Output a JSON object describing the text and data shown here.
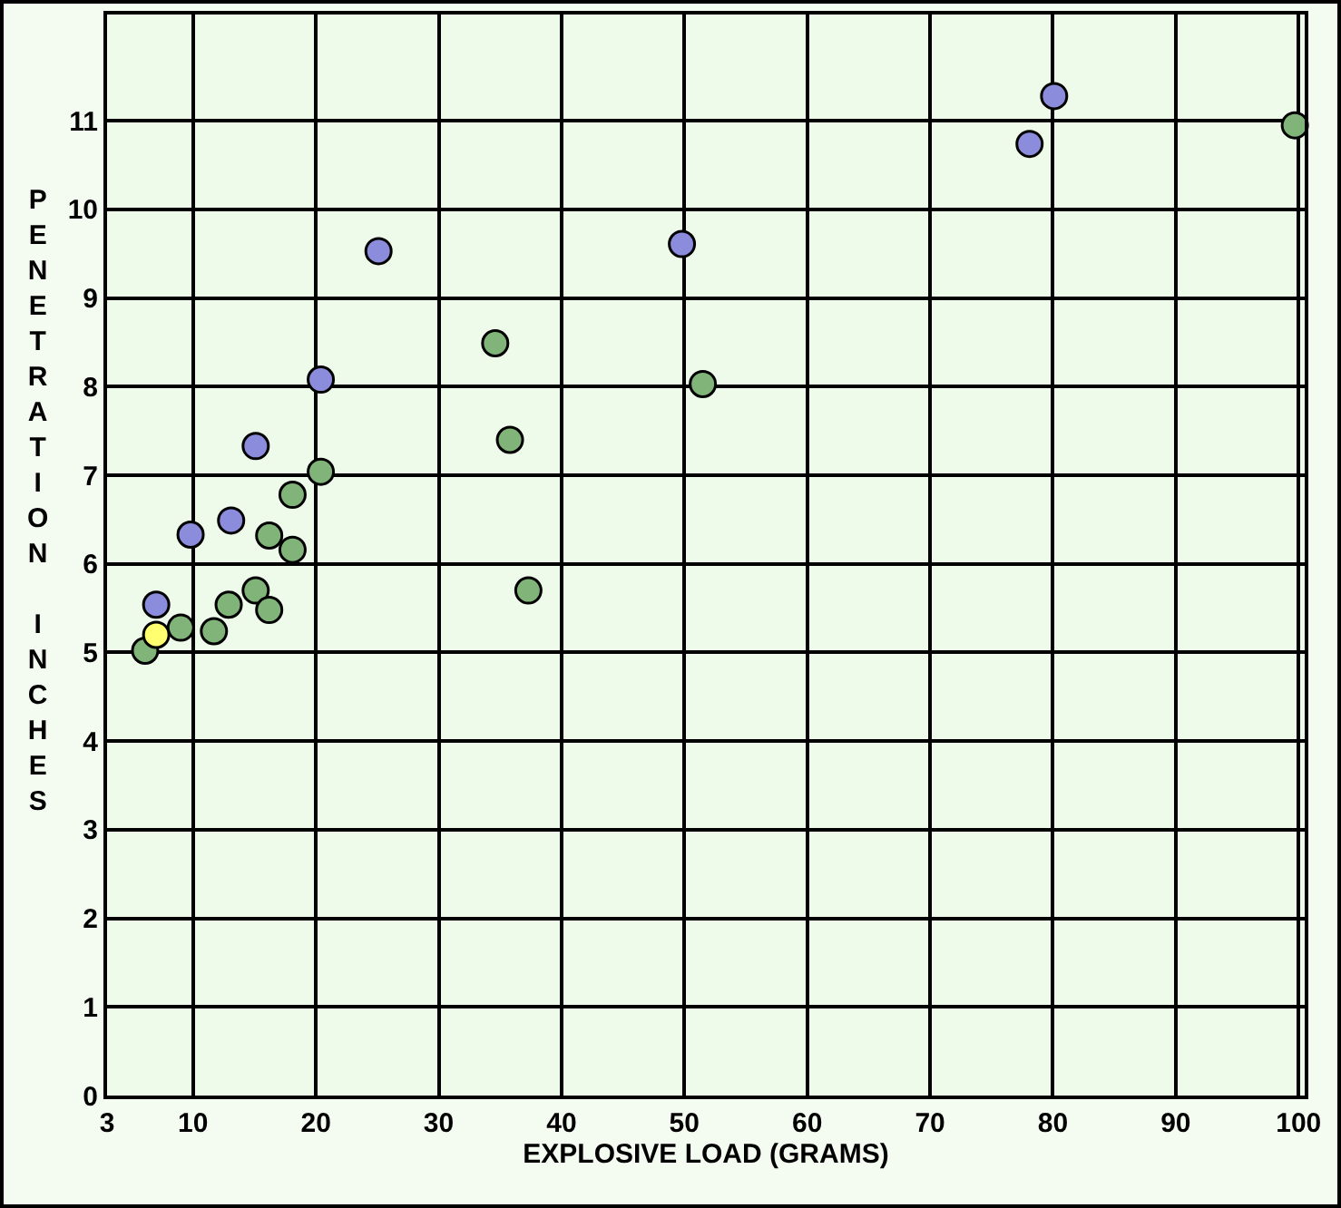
{
  "chart_data": {
    "type": "scatter",
    "xlabel": "EXPLOSIVE LOAD (GRAMS)",
    "ylabel": "PENETRATION INCHES",
    "xlim": [
      3,
      100.5
    ],
    "xticks": [
      3,
      10,
      20,
      30,
      40,
      50,
      60,
      70,
      80,
      90,
      100
    ],
    "ylim": [
      0,
      12.2
    ],
    "yticks": [
      0,
      1,
      2,
      3,
      4,
      5,
      6,
      7,
      8,
      9,
      10,
      11
    ],
    "grid": true,
    "marker": "circle",
    "series": [
      {
        "color": "#8c8cdc",
        "x": [
          25.1,
          20.4,
          15.1,
          13.1,
          9.8,
          7.0,
          80.1,
          78.1,
          49.8
        ],
        "values": [
          9.53,
          8.08,
          7.33,
          6.49,
          6.33,
          5.54,
          11.28,
          10.74,
          9.61
        ]
      },
      {
        "color": "#80b478",
        "x": [
          34.6,
          35.8,
          20.4,
          18.1,
          16.2,
          18.1,
          37.3,
          6.1,
          9.0,
          11.7,
          12.9,
          15.1,
          16.2,
          99.7,
          51.5
        ],
        "values": [
          8.49,
          7.4,
          7.04,
          6.78,
          6.32,
          6.16,
          5.7,
          5.02,
          5.28,
          5.24,
          5.54,
          5.7,
          5.48,
          10.95,
          8.03
        ]
      },
      {
        "color": "#ffff70",
        "x": [
          7.0
        ],
        "values": [
          5.2
        ]
      }
    ]
  }
}
